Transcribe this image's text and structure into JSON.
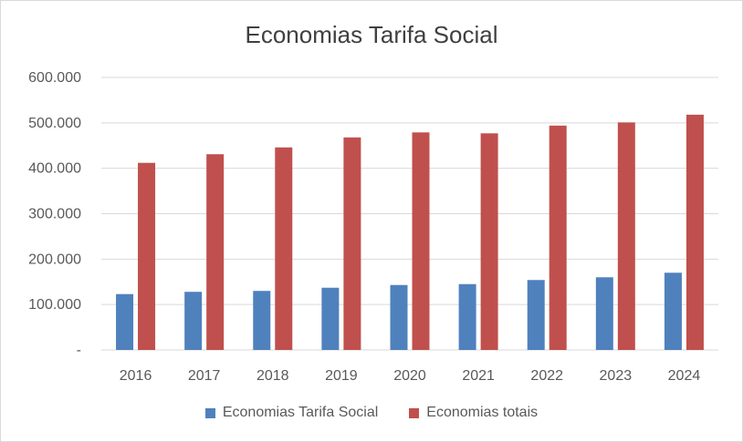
{
  "chart_data": {
    "type": "bar",
    "title": "Economias Tarifa Social",
    "xlabel": "",
    "ylabel": "",
    "categories": [
      "2016",
      "2017",
      "2018",
      "2019",
      "2020",
      "2021",
      "2022",
      "2023",
      "2024"
    ],
    "series": [
      {
        "name": "Economias Tarifa Social",
        "color": "#4f81bd",
        "values": [
          123000,
          128000,
          130000,
          137000,
          143000,
          145000,
          154000,
          160000,
          170000
        ]
      },
      {
        "name": "Economias totais",
        "color": "#c0504d",
        "values": [
          412000,
          431000,
          446000,
          468000,
          479000,
          477000,
          494000,
          501000,
          518000
        ]
      }
    ],
    "ylim": [
      0,
      600000
    ],
    "yticks": [
      {
        "value": 0,
        "label": "-"
      },
      {
        "value": 100000,
        "label": "100.000"
      },
      {
        "value": 200000,
        "label": "200.000"
      },
      {
        "value": 300000,
        "label": "300.000"
      },
      {
        "value": 400000,
        "label": "400.000"
      },
      {
        "value": 500000,
        "label": "500.000"
      },
      {
        "value": 600000,
        "label": "600.000"
      }
    ],
    "grid": true,
    "legend_position": "bottom"
  }
}
